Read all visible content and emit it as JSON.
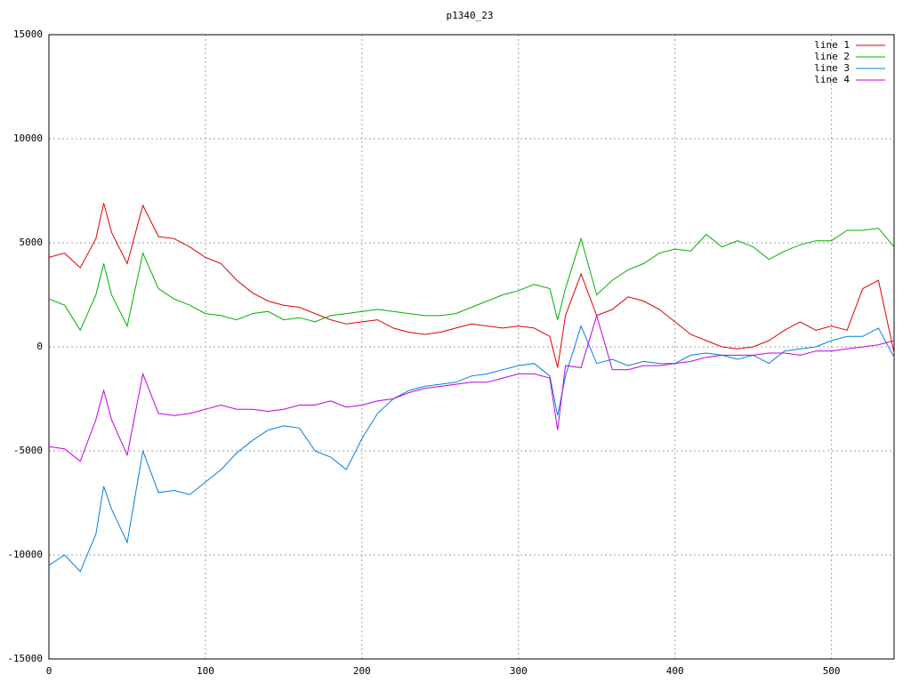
{
  "chart_data": {
    "type": "line",
    "title": "p1340_23",
    "x": [
      0,
      10,
      20,
      30,
      35,
      40,
      50,
      60,
      70,
      80,
      90,
      100,
      110,
      120,
      130,
      140,
      150,
      160,
      170,
      180,
      190,
      200,
      210,
      220,
      230,
      240,
      250,
      260,
      270,
      280,
      290,
      300,
      310,
      320,
      325,
      330,
      340,
      350,
      360,
      370,
      380,
      390,
      400,
      410,
      420,
      430,
      440,
      450,
      460,
      470,
      480,
      490,
      500,
      510,
      520,
      530,
      540
    ],
    "series": [
      {
        "name": "line 1",
        "color": "#e00000",
        "values": [
          4300,
          4500,
          3800,
          5200,
          6900,
          5500,
          4000,
          6800,
          5300,
          5200,
          4800,
          4300,
          4000,
          3200,
          2600,
          2200,
          2000,
          1900,
          1600,
          1300,
          1100,
          1200,
          1300,
          900,
          700,
          600,
          700,
          900,
          1100,
          1000,
          900,
          1000,
          900,
          500,
          -1000,
          1500,
          3500,
          1500,
          1800,
          2400,
          2200,
          1800,
          1200,
          600,
          300,
          0,
          -100,
          0,
          300,
          800,
          1200,
          800,
          1000,
          800,
          2800,
          3200,
          -300
        ]
      },
      {
        "name": "line 2",
        "color": "#00b000",
        "values": [
          2300,
          2000,
          800,
          2500,
          4000,
          2500,
          1000,
          4500,
          2800,
          2300,
          2000,
          1600,
          1500,
          1300,
          1600,
          1700,
          1300,
          1400,
          1200,
          1500,
          1600,
          1700,
          1800,
          1700,
          1600,
          1500,
          1500,
          1600,
          1900,
          2200,
          2500,
          2700,
          3000,
          2800,
          1300,
          2800,
          5200,
          2500,
          3200,
          3700,
          4000,
          4500,
          4700,
          4600,
          5400,
          4800,
          5100,
          4800,
          4200,
          4600,
          4900,
          5100,
          5100,
          5600,
          5600,
          5700,
          4800
        ]
      },
      {
        "name": "line 3",
        "color": "#0080e0",
        "values": [
          -10500,
          -10000,
          -10800,
          -9000,
          -6700,
          -7800,
          -9400,
          -5000,
          -7000,
          -6900,
          -7100,
          -6500,
          -5900,
          -5100,
          -4500,
          -4000,
          -3800,
          -3900,
          -5000,
          -5300,
          -5900,
          -4400,
          -3200,
          -2500,
          -2100,
          -1900,
          -1800,
          -1700,
          -1400,
          -1300,
          -1100,
          -900,
          -800,
          -1400,
          -3300,
          -1400,
          1000,
          -800,
          -600,
          -900,
          -700,
          -800,
          -800,
          -400,
          -300,
          -400,
          -600,
          -400,
          -800,
          -200,
          -100,
          0,
          300,
          500,
          500,
          900,
          -500
        ]
      },
      {
        "name": "line 4",
        "color": "#c000e0",
        "values": [
          -4800,
          -4900,
          -5500,
          -3500,
          -2100,
          -3500,
          -5200,
          -1300,
          -3200,
          -3300,
          -3200,
          -3000,
          -2800,
          -3000,
          -3000,
          -3100,
          -3000,
          -2800,
          -2800,
          -2600,
          -2900,
          -2800,
          -2600,
          -2500,
          -2200,
          -2000,
          -1900,
          -1800,
          -1700,
          -1700,
          -1500,
          -1300,
          -1300,
          -1500,
          -4000,
          -900,
          -1000,
          1500,
          -1100,
          -1100,
          -900,
          -900,
          -800,
          -700,
          -500,
          -400,
          -400,
          -400,
          -300,
          -300,
          -400,
          -200,
          -200,
          -100,
          0,
          100,
          300
        ]
      }
    ],
    "xlim": [
      0,
      540
    ],
    "xticks": [
      0,
      100,
      200,
      300,
      400,
      500
    ],
    "ylim": [
      -15000,
      15000
    ],
    "yticks": [
      -15000,
      -10000,
      -5000,
      0,
      5000,
      10000,
      15000
    ],
    "grid": true,
    "legend": "top-right"
  }
}
